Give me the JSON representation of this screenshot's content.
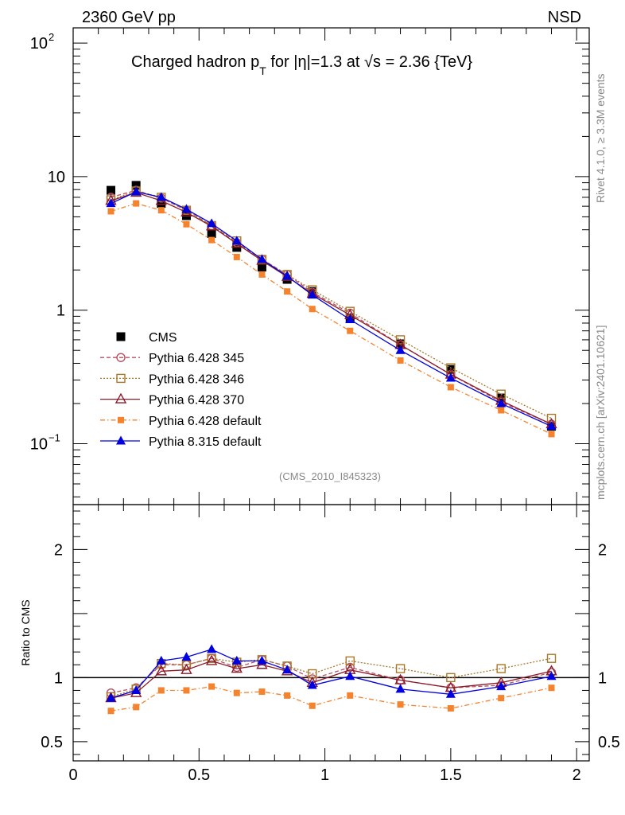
{
  "header": {
    "left": "2360 GeV pp",
    "right": "NSD"
  },
  "side_labels": {
    "top": "Rivet 4.1.0, ≥ 3.3M events",
    "bottom": "mcplots.cern.ch [arXiv:2401.10621]"
  },
  "title": {
    "main": "Charged hadron p",
    "sub": "T",
    "rest": " for |η|=1.3 at √s = 2.36 {TeV}"
  },
  "analysis_tag": "(CMS_2010_I845323)",
  "colors": {
    "cms": "#000000",
    "p345": "#b85060",
    "p346": "#a8782a",
    "p370": "#8b1a2a",
    "pdefault": "#f5822d",
    "p8": "#0000e0"
  },
  "chart_data": [
    {
      "type": "line",
      "title": "Charged hadron p_T for |eta|=1.3 at sqrt(s) = 2.36 {TeV}",
      "yscale": "log",
      "xlim": [
        0,
        2.05
      ],
      "ylim": [
        0.035,
        130
      ],
      "yticks": [
        {
          "value": 100,
          "label": "10",
          "sup": "2"
        },
        {
          "value": 10,
          "label": "10",
          "sup": ""
        },
        {
          "value": 1,
          "label": "1",
          "sup": ""
        },
        {
          "value": 0.1,
          "label": "10",
          "sup": "−1"
        }
      ],
      "x": [
        0.15,
        0.25,
        0.35,
        0.45,
        0.55,
        0.65,
        0.75,
        0.85,
        0.95,
        1.1,
        1.3,
        1.5,
        1.7,
        1.9
      ],
      "legend_position": "bottom-left",
      "series": [
        {
          "name": "CMS",
          "key": "cms",
          "marker": "square-filled",
          "dash": "",
          "values": [
            7.9,
            8.6,
            6.3,
            5.1,
            3.75,
            2.95,
            2.1,
            1.7,
            1.38,
            0.87,
            0.56,
            0.36,
            0.22,
            0.135
          ]
        },
        {
          "name": "Pythia 6.428 345",
          "key": "p345",
          "marker": "circle-open",
          "dash": "5,3",
          "values": [
            7.0,
            7.9,
            6.9,
            5.6,
            4.3,
            3.2,
            2.4,
            1.85,
            1.36,
            0.95,
            0.55,
            0.33,
            0.205,
            0.14
          ]
        },
        {
          "name": "Pythia 6.428 346",
          "key": "p346",
          "marker": "square-open",
          "dash": "2,2",
          "values": [
            6.7,
            7.8,
            7.0,
            5.6,
            4.3,
            3.3,
            2.4,
            1.85,
            1.42,
            0.98,
            0.6,
            0.37,
            0.235,
            0.155
          ]
        },
        {
          "name": "Pythia 6.428 370",
          "key": "p370",
          "marker": "triangle-open",
          "dash": "",
          "values": [
            6.6,
            7.6,
            6.6,
            5.4,
            4.25,
            3.15,
            2.35,
            1.78,
            1.33,
            0.92,
            0.55,
            0.33,
            0.21,
            0.14
          ]
        },
        {
          "name": "Pythia 6.428 default",
          "key": "pdefault",
          "marker": "square-filled-small",
          "dash": "6,3,1.5,3",
          "values": [
            5.5,
            6.3,
            5.6,
            4.4,
            3.35,
            2.5,
            1.85,
            1.38,
            1.02,
            0.7,
            0.42,
            0.265,
            0.178,
            0.118
          ]
        },
        {
          "name": "Pythia 8.315 default",
          "key": "p8",
          "marker": "triangle-filled",
          "dash": "",
          "values": [
            6.3,
            7.7,
            7.0,
            5.7,
            4.45,
            3.3,
            2.4,
            1.8,
            1.3,
            0.85,
            0.5,
            0.31,
            0.2,
            0.135
          ]
        }
      ]
    },
    {
      "type": "line",
      "ylabel": "Ratio to CMS",
      "yscale": "linear",
      "xlim": [
        0,
        2.05
      ],
      "ylim": [
        0.35,
        2.35
      ],
      "reference_line": 1,
      "yticks": [
        {
          "value": 0.5,
          "label": "0.5"
        },
        {
          "value": 1,
          "label": "1"
        },
        {
          "value": 2,
          "label": "2"
        }
      ],
      "xticks": [
        {
          "value": 0,
          "label": "0"
        },
        {
          "value": 0.5,
          "label": "0.5"
        },
        {
          "value": 1,
          "label": "1"
        },
        {
          "value": 1.5,
          "label": "1.5"
        },
        {
          "value": 2,
          "label": "2"
        }
      ],
      "x": [
        0.15,
        0.25,
        0.35,
        0.45,
        0.55,
        0.65,
        0.75,
        0.85,
        0.95,
        1.1,
        1.3,
        1.5,
        1.7,
        1.9
      ],
      "series": [
        {
          "name": "Pythia 6.428 345",
          "key": "p345",
          "marker": "circle-open",
          "dash": "5,3",
          "values": [
            0.88,
            0.92,
            1.1,
            1.1,
            1.15,
            1.08,
            1.14,
            1.09,
            0.99,
            1.08,
            0.98,
            0.92,
            0.94,
            1.04
          ]
        },
        {
          "name": "Pythia 6.428 346",
          "key": "p346",
          "marker": "square-open",
          "dash": "2,2",
          "values": [
            0.85,
            0.91,
            1.11,
            1.1,
            1.15,
            1.12,
            1.14,
            1.09,
            1.03,
            1.13,
            1.07,
            1.0,
            1.07,
            1.15
          ]
        },
        {
          "name": "Pythia 6.428 370",
          "key": "p370",
          "marker": "triangle-open",
          "dash": "",
          "values": [
            0.84,
            0.88,
            1.05,
            1.06,
            1.13,
            1.07,
            1.1,
            1.05,
            0.96,
            1.06,
            0.98,
            0.92,
            0.96,
            1.05
          ]
        },
        {
          "name": "Pythia 6.428 default",
          "key": "pdefault",
          "marker": "square-filled-small",
          "dash": "6,3,1.5,3",
          "values": [
            0.74,
            0.77,
            0.9,
            0.9,
            0.93,
            0.88,
            0.89,
            0.86,
            0.78,
            0.86,
            0.79,
            0.76,
            0.84,
            0.92
          ]
        },
        {
          "name": "Pythia 8.315 default",
          "key": "p8",
          "marker": "triangle-filled",
          "dash": "",
          "values": [
            0.84,
            0.9,
            1.13,
            1.16,
            1.22,
            1.13,
            1.13,
            1.06,
            0.94,
            1.01,
            0.91,
            0.87,
            0.93,
            1.01
          ]
        }
      ]
    }
  ]
}
